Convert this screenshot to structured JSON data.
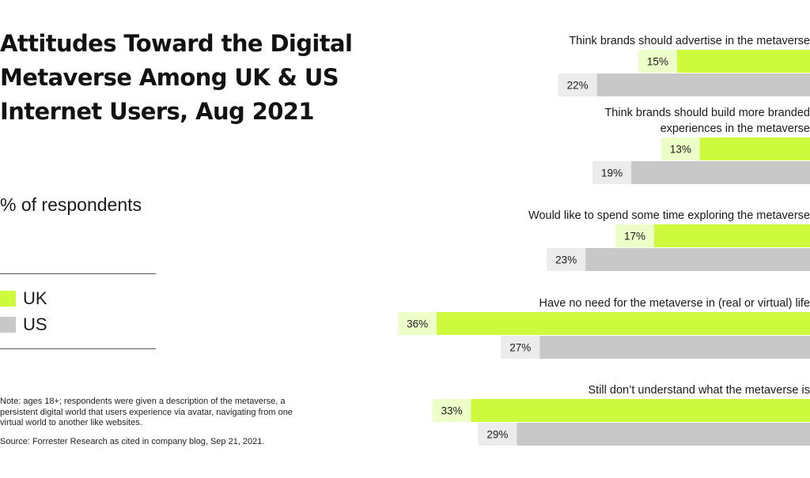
{
  "title": "Attitudes Toward the Digital Metaverse Among UK & US Internet Users, Aug 2021",
  "subtitle": "% of respondents",
  "legend": [
    {
      "label": "UK",
      "color": "#cdfa3c"
    },
    {
      "label": "US",
      "color": "#c8c8c8"
    }
  ],
  "note": "Note: ages 18+; respondents were given a description of the metaverse, a persistent digital world that users experience via avatar, navigating from one virtual world to another like websites.",
  "source": "Source: Forrester Research as cited in company blog, Sep 21, 2021.",
  "colors": {
    "uk_bar": "#cdfa3c",
    "uk_label_bg": "#edfec8",
    "us_bar": "#c8c8c8",
    "us_label_bg": "#ececec"
  },
  "chart_data": {
    "type": "bar",
    "orientation": "horizontal",
    "categories": [
      [
        "Think brands should advertise in the metaverse"
      ],
      [
        "Think brands should build more branded",
        "experiences in the metaverse"
      ],
      [
        "Would like to spend some time exploring the metaverse"
      ],
      [
        "Have no need for the metaverse in (real or virtual) life"
      ],
      [
        "Still don’t understand what the metaverse is"
      ]
    ],
    "series": [
      {
        "name": "UK",
        "values": [
          15,
          13,
          17,
          36,
          33
        ],
        "labels": [
          "15%",
          "13%",
          "17%",
          "36%",
          "33%"
        ]
      },
      {
        "name": "US",
        "values": [
          22,
          19,
          23,
          27,
          29
        ],
        "labels": [
          "22%",
          "19%",
          "23%",
          "27%",
          "29%"
        ]
      }
    ],
    "unit": "%"
  }
}
